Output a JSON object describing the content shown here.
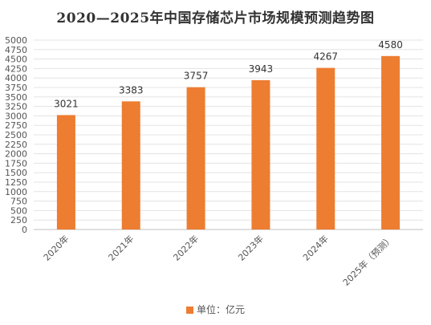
{
  "chart_data": {
    "type": "bar",
    "title": "2020—2025年中国存储芯片市场规模预测趋势图",
    "categories": [
      "2020年",
      "2021年",
      "2022年",
      "2023年",
      "2024年",
      "2025年（预测）"
    ],
    "series": [
      {
        "name": "单位：亿元",
        "values": [
          3021,
          3383,
          3757,
          3943,
          4267,
          4580
        ]
      }
    ],
    "ylim": [
      0,
      5000
    ],
    "yticks": [
      0,
      250,
      500,
      750,
      1000,
      1250,
      1500,
      1750,
      2000,
      2250,
      2500,
      2750,
      3000,
      3250,
      3500,
      3750,
      4000,
      4250,
      4500,
      4750,
      5000
    ],
    "ytick_labels": [
      "0",
      "250",
      "500",
      "750",
      "1000",
      "1250",
      "1500",
      "1750",
      "2000",
      "2250",
      "2500",
      "2750",
      "3000",
      "3250",
      "3500",
      "3750",
      "4000",
      "4250",
      "4500",
      "4750",
      "5000"
    ],
    "grid": true,
    "legend_position": "bottom",
    "bar_color": "#ED7D31"
  }
}
